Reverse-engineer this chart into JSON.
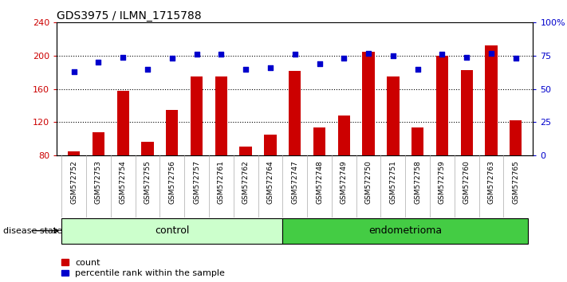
{
  "title": "GDS3975 / ILMN_1715788",
  "samples": [
    "GSM572752",
    "GSM572753",
    "GSM572754",
    "GSM572755",
    "GSM572756",
    "GSM572757",
    "GSM572761",
    "GSM572762",
    "GSM572764",
    "GSM572747",
    "GSM572748",
    "GSM572749",
    "GSM572750",
    "GSM572751",
    "GSM572758",
    "GSM572759",
    "GSM572760",
    "GSM572763",
    "GSM572765"
  ],
  "bar_values": [
    85,
    108,
    158,
    96,
    135,
    175,
    175,
    90,
    105,
    182,
    113,
    128,
    205,
    175,
    113,
    200,
    183,
    212,
    122
  ],
  "dot_values": [
    63,
    70,
    74,
    65,
    73,
    76,
    76,
    65,
    66,
    76,
    69,
    73,
    77,
    75,
    65,
    76,
    74,
    77,
    73
  ],
  "control_count": 9,
  "endometrioma_count": 10,
  "ylim_left": [
    80,
    240
  ],
  "ylim_right": [
    0,
    100
  ],
  "yticks_left": [
    80,
    120,
    160,
    200,
    240
  ],
  "yticks_right": [
    0,
    25,
    50,
    75,
    100
  ],
  "ytick_labels_right": [
    "0",
    "25",
    "50",
    "75",
    "100%"
  ],
  "bar_color": "#cc0000",
  "dot_color": "#0000cc",
  "control_bg": "#ccffcc",
  "endometrioma_bg": "#44cc44",
  "tick_area_bg": "#cccccc",
  "legend_bar_label": "count",
  "legend_dot_label": "percentile rank within the sample",
  "disease_state_label": "disease state",
  "control_label": "control",
  "endometrioma_label": "endometrioma"
}
